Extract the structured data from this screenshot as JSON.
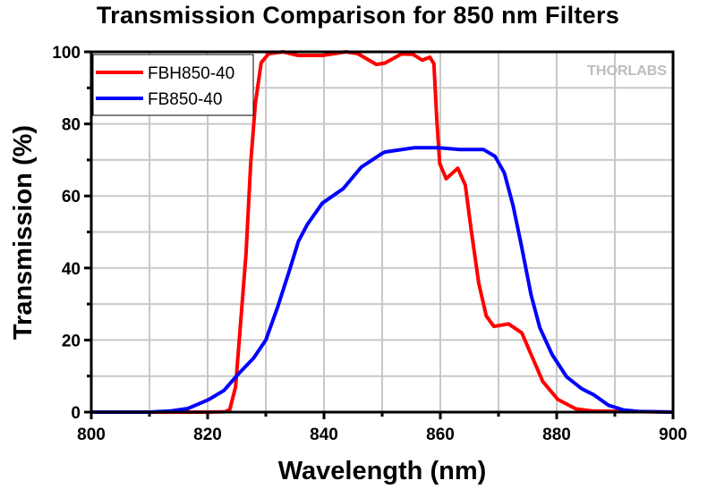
{
  "chart_data": {
    "type": "line",
    "title": "Transmission Comparison for 850 nm Filters",
    "xlabel": "Wavelength (nm)",
    "ylabel": "Transmission (%)",
    "xlim": [
      800,
      900
    ],
    "ylim": [
      0,
      100
    ],
    "xticks": [
      800,
      820,
      840,
      860,
      880,
      900
    ],
    "yticks": [
      0,
      20,
      40,
      60,
      80,
      100
    ],
    "grid": true,
    "legend_position": "top-left",
    "watermark": "THORLABS",
    "series": [
      {
        "name": "FBH850-40",
        "color": "#ff0000",
        "x": [
          800,
          820,
          823,
          823.8,
          824.8,
          825.8,
          826.6,
          827.4,
          828.2,
          829.2,
          830.5,
          833,
          835.5,
          839.7,
          843.8,
          845.8,
          849,
          850.5,
          853.3,
          855.3,
          856.9,
          858.2,
          858.9,
          859.4,
          859.9,
          861,
          863,
          864.3,
          865.3,
          866.6,
          867.9,
          869.2,
          871.7,
          874,
          875.6,
          877.6,
          880.2,
          883.3,
          886.3,
          900
        ],
        "y": [
          0,
          0,
          0.1,
          0.7,
          7,
          27.5,
          44,
          69,
          85.6,
          97,
          99.5,
          100,
          99,
          99,
          100,
          99.5,
          96.5,
          96.9,
          99.4,
          99.3,
          97.7,
          98.5,
          96.7,
          81,
          69,
          64.8,
          67.7,
          63,
          50.7,
          35.8,
          26.7,
          23.8,
          24.5,
          22,
          16,
          8.5,
          3.5,
          0.9,
          0.3,
          0
        ]
      },
      {
        "name": "FB850-40",
        "color": "#0000ff",
        "x": [
          800,
          810,
          813.5,
          816.6,
          820.2,
          822.8,
          825.3,
          827.9,
          830,
          832,
          834,
          835.6,
          837.1,
          839.7,
          843.3,
          846.4,
          850,
          850.5,
          855.6,
          859.7,
          863.3,
          867.4,
          869.4,
          871,
          872.5,
          874,
          875.6,
          877.1,
          879.2,
          881.7,
          884.3,
          886.4,
          888.9,
          891.5,
          894,
          900
        ],
        "y": [
          0,
          0,
          0.3,
          1,
          3.5,
          6,
          10.6,
          15,
          20,
          29,
          39,
          47.4,
          52,
          58,
          62,
          68,
          71.8,
          72.2,
          73.4,
          73.4,
          72.9,
          72.9,
          71,
          66.4,
          57.3,
          45.7,
          32.5,
          23.4,
          16,
          9.8,
          6.5,
          4.8,
          1.9,
          0.6,
          0.2,
          0
        ]
      }
    ]
  }
}
